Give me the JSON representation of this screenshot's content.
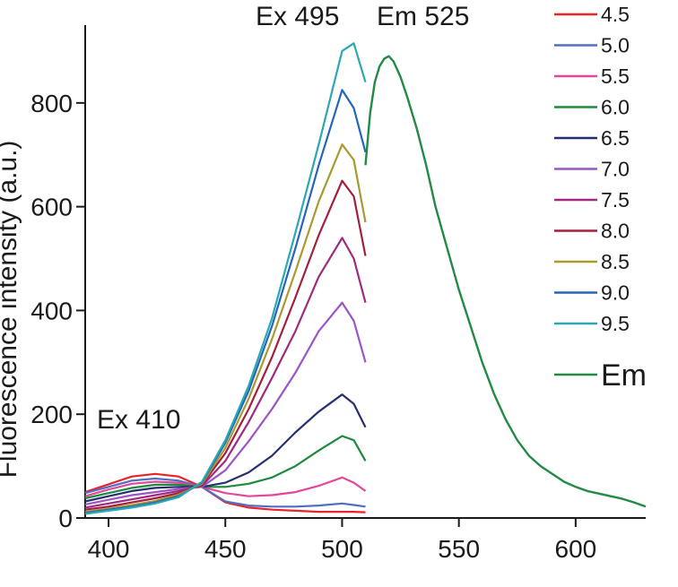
{
  "chart_data": {
    "type": "line",
    "title": "",
    "xlabel": "",
    "ylabel": "Fluorescence intensity (a.u.)",
    "xlim": [
      390,
      630
    ],
    "ylim": [
      0,
      950
    ],
    "xticks": [
      400,
      450,
      500,
      550,
      600
    ],
    "yticks": [
      0,
      200,
      400,
      600,
      800
    ],
    "grid": false,
    "legend_position": "top-right",
    "annotations": [
      {
        "text": "Ex 495",
        "x": 495,
        "y": 950
      },
      {
        "text": "Em 525",
        "x": 525,
        "y": 950
      },
      {
        "text": "Ex 410",
        "x": 410,
        "y": 185
      }
    ],
    "x": [
      390,
      400,
      410,
      420,
      430,
      440,
      450,
      460,
      470,
      480,
      490,
      500,
      505,
      510
    ],
    "series": [
      {
        "name": "4.5",
        "color": "#e8242a",
        "values": [
          50,
          65,
          80,
          85,
          80,
          60,
          30,
          20,
          16,
          14,
          12,
          12,
          12,
          11
        ]
      },
      {
        "name": "5.0",
        "color": "#4f6fc4",
        "values": [
          48,
          60,
          72,
          76,
          72,
          60,
          32,
          24,
          22,
          22,
          24,
          28,
          25,
          22
        ]
      },
      {
        "name": "5.5",
        "color": "#e2479c",
        "values": [
          42,
          55,
          66,
          70,
          68,
          60,
          48,
          42,
          44,
          50,
          62,
          78,
          68,
          52
        ]
      },
      {
        "name": "6.0",
        "color": "#1d8a3e",
        "values": [
          38,
          48,
          58,
          64,
          64,
          60,
          60,
          66,
          78,
          100,
          130,
          158,
          150,
          110
        ]
      },
      {
        "name": "6.5",
        "color": "#27306e",
        "values": [
          32,
          42,
          52,
          58,
          60,
          60,
          68,
          88,
          120,
          165,
          205,
          238,
          220,
          175
        ]
      },
      {
        "name": "7.0",
        "color": "#9b55c6",
        "values": [
          26,
          35,
          44,
          50,
          56,
          60,
          92,
          148,
          210,
          280,
          360,
          415,
          380,
          300
        ]
      },
      {
        "name": "7.5",
        "color": "#9e2a82",
        "values": [
          20,
          28,
          36,
          44,
          52,
          62,
          110,
          185,
          270,
          360,
          465,
          540,
          500,
          415
        ]
      },
      {
        "name": "8.0",
        "color": "#a3203d",
        "values": [
          16,
          22,
          30,
          38,
          48,
          64,
          125,
          210,
          310,
          425,
          545,
          650,
          620,
          505
        ]
      },
      {
        "name": "8.5",
        "color": "#a99a2e",
        "values": [
          12,
          18,
          25,
          33,
          45,
          66,
          135,
          230,
          345,
          475,
          610,
          720,
          690,
          570
        ]
      },
      {
        "name": "9.0",
        "color": "#2466b8",
        "values": [
          10,
          16,
          22,
          30,
          42,
          68,
          145,
          245,
          370,
          520,
          680,
          825,
          790,
          705
        ]
      },
      {
        "name": "9.5",
        "color": "#2aa8b4",
        "values": [
          8,
          14,
          20,
          28,
          40,
          70,
          150,
          255,
          385,
          550,
          720,
          900,
          915,
          840
        ]
      }
    ],
    "em_series": {
      "name": "Em",
      "color": "#238a45",
      "x": [
        510,
        512,
        514,
        516,
        518,
        520,
        522,
        525,
        528,
        532,
        536,
        540,
        545,
        550,
        555,
        560,
        565,
        570,
        575,
        580,
        585,
        590,
        595,
        600,
        605,
        610,
        615,
        620,
        625,
        630
      ],
      "values": [
        680,
        780,
        840,
        870,
        885,
        890,
        880,
        850,
        810,
        750,
        680,
        600,
        520,
        440,
        370,
        300,
        240,
        190,
        150,
        120,
        100,
        85,
        70,
        60,
        52,
        47,
        42,
        37,
        30,
        22
      ]
    }
  }
}
